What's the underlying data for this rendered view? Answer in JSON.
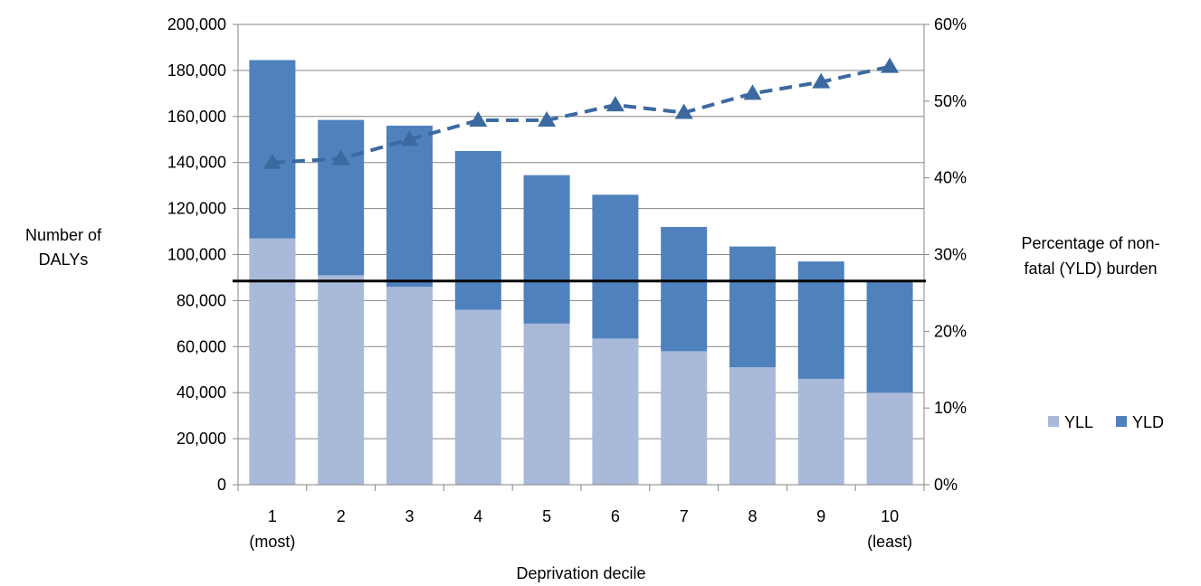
{
  "chart_data": {
    "type": "bar",
    "stacked": true,
    "categories": [
      "1",
      "2",
      "3",
      "4",
      "5",
      "6",
      "7",
      "8",
      "9",
      "10"
    ],
    "category_sublabels": [
      "(most)",
      "",
      "",
      "",
      "",
      "",
      "",
      "",
      "",
      "(least)"
    ],
    "xlabel": "Deprivation decile",
    "ylabel": [
      "Number of",
      "DALYs"
    ],
    "ylabel_right": [
      "Percentage of non-",
      "fatal (YLD) burden"
    ],
    "ylim": [
      0,
      200000
    ],
    "yticks": [
      "0",
      "20,000",
      "40,000",
      "60,000",
      "80,000",
      "100,000",
      "120,000",
      "140,000",
      "160,000",
      "180,000",
      "200,000"
    ],
    "ylim_right": [
      0,
      0.6
    ],
    "yticks_right": [
      "0%",
      "10%",
      "20%",
      "30%",
      "40%",
      "50%",
      "60%"
    ],
    "series": [
      {
        "name": "YLL",
        "color": "#a9b9d9",
        "values": [
          107000,
          91000,
          86000,
          76000,
          70000,
          63500,
          58000,
          51000,
          46000,
          40000
        ]
      },
      {
        "name": "YLD",
        "color": "#4f81bd",
        "values": [
          77500,
          67500,
          70000,
          69000,
          64500,
          62500,
          54000,
          52500,
          51000,
          48500
        ]
      }
    ],
    "line_series": {
      "axis": "right",
      "style": "dashed",
      "marker": "triangle",
      "color": "#3c6aa0",
      "values": [
        0.42,
        0.425,
        0.45,
        0.475,
        0.475,
        0.495,
        0.485,
        0.51,
        0.525,
        0.545
      ]
    },
    "reference_line": {
      "axis": "left",
      "value": 88500,
      "color": "#000000"
    },
    "grid": {
      "horizontal": true
    },
    "legend": {
      "placement": "right",
      "items": [
        "YLL",
        "YLD"
      ]
    }
  }
}
